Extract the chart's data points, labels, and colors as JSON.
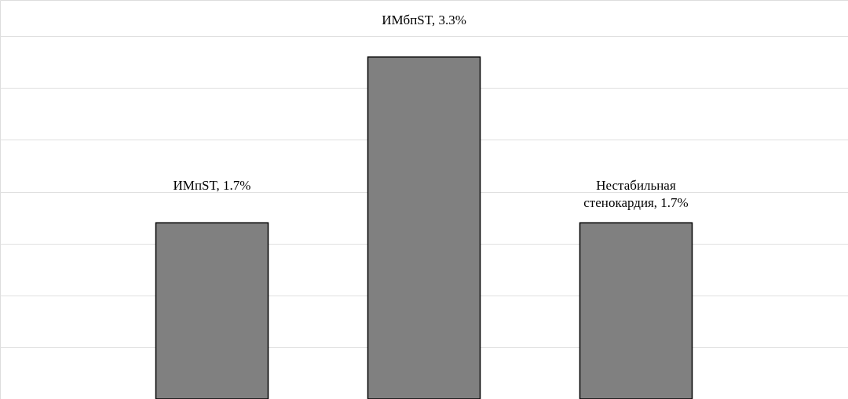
{
  "chart_data": {
    "type": "bar",
    "categories": [
      null,
      null,
      null
    ],
    "values": [
      1.7,
      3.3,
      1.7
    ],
    "value_labels": [
      "ИМпST, 1.7%",
      "ИМбпST, 3.3%",
      "Нестабильная стенокардия, 1.7%"
    ],
    "color": "#808080",
    "ylim": [
      0,
      3.85
    ],
    "yticks": [
      {
        "value": 0.5,
        "label": null
      },
      {
        "value": 1.0,
        "label": null
      },
      {
        "value": 1.5,
        "label": null
      },
      {
        "value": 2.0,
        "label": null
      },
      {
        "value": 2.5,
        "label": null
      },
      {
        "value": 3.0,
        "label": null
      },
      {
        "value": 3.5,
        "label": null
      }
    ],
    "tick_labels": false,
    "grid": "y"
  }
}
